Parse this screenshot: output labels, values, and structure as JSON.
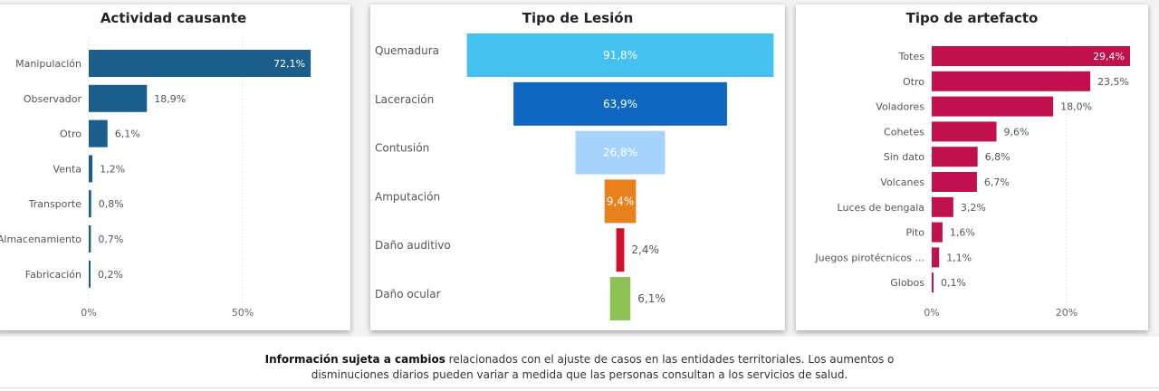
{
  "chart_data": [
    {
      "type": "bar",
      "orientation": "horizontal",
      "title": "Actividad causante",
      "categories": [
        "Manipulación",
        "Observador",
        "Otro",
        "Venta",
        "Transporte",
        "Almacenamiento",
        "Fabricación"
      ],
      "values": [
        72.1,
        18.9,
        6.1,
        1.2,
        0.8,
        0.7,
        0.2
      ],
      "data_labels": [
        "72,1%",
        "18,9%",
        "6,1%",
        "1,2%",
        "0,8%",
        "0,7%",
        "0,2%"
      ],
      "xticks": [
        "0%",
        "50%"
      ],
      "xtick_values": [
        0,
        50
      ],
      "xlim": [
        0,
        75
      ],
      "grid": true,
      "color": "#1b5e8c"
    },
    {
      "type": "funnel",
      "title": "Tipo de Lesión",
      "categories": [
        "Quemadura",
        "Laceración",
        "Contusión",
        "Amputación",
        "Daño auditivo",
        "Daño ocular"
      ],
      "values": [
        91.8,
        63.9,
        26.8,
        9.4,
        2.4,
        6.1
      ],
      "data_labels": [
        "91,8%",
        "63,9%",
        "26,8%",
        "9,4%",
        "2,4%",
        "6,1%"
      ],
      "colors": [
        "#45c1ef",
        "#1067c2",
        "#a6d3fb",
        "#e8801e",
        "#d2102c",
        "#8dc153"
      ]
    },
    {
      "type": "bar",
      "orientation": "horizontal",
      "title": "Tipo de artefacto",
      "categories": [
        "Totes",
        "Otro",
        "Voladores",
        "Cohetes",
        "Sin dato",
        "Volcanes",
        "Luces de bengala",
        "Pito",
        "Juegos pirotécnicos ...",
        "Globos"
      ],
      "values": [
        29.4,
        23.5,
        18.0,
        9.6,
        6.8,
        6.7,
        3.2,
        1.6,
        1.1,
        0.1
      ],
      "data_labels": [
        "29,4%",
        "23,5%",
        "18,0%",
        "9,6%",
        "6,8%",
        "6,7%",
        "3,2%",
        "1,6%",
        "1,1%",
        "0,1%"
      ],
      "xticks": [
        "0%",
        "20%"
      ],
      "xtick_values": [
        0,
        20
      ],
      "xlim": [
        0,
        30
      ],
      "grid": true,
      "color": "#c0104e"
    }
  ],
  "footer": {
    "bold": "Información sujeta a cambios",
    "line1": " relacionados con el ajuste de casos en las entidades territoriales. Los aumentos o",
    "line2": "disminuciones diarios pueden variar a medida que las personas consultan a los servicios de salud."
  }
}
